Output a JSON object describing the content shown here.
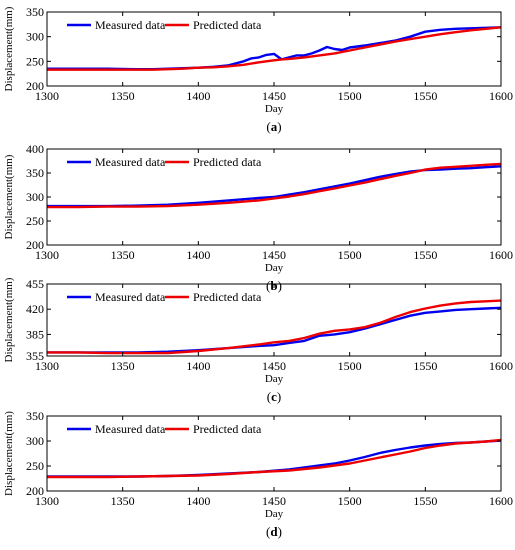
{
  "chart_data": [
    {
      "type": "line",
      "panel_label": "(a)",
      "panel_letter": "a",
      "xlabel": "Day",
      "ylabel": "Displacement(mm)",
      "xlim": [
        1300,
        1600
      ],
      "ylim": [
        200,
        350
      ],
      "xticks": [
        1300,
        1350,
        1400,
        1450,
        1500,
        1550,
        1600
      ],
      "yticks": [
        200,
        250,
        300,
        350
      ],
      "legend_position": "top-left",
      "series": [
        {
          "name": "Measured data",
          "color": "#0000ee",
          "x": [
            1300,
            1320,
            1340,
            1360,
            1370,
            1380,
            1390,
            1400,
            1410,
            1420,
            1430,
            1435,
            1440,
            1445,
            1450,
            1455,
            1460,
            1465,
            1470,
            1475,
            1480,
            1485,
            1490,
            1495,
            1500,
            1510,
            1520,
            1530,
            1540,
            1550,
            1560,
            1570,
            1580,
            1590,
            1600
          ],
          "y": [
            235,
            235,
            235,
            234,
            234,
            235,
            236,
            237,
            239,
            242,
            250,
            256,
            258,
            263,
            265,
            254,
            258,
            262,
            262,
            266,
            272,
            279,
            275,
            273,
            278,
            282,
            287,
            292,
            300,
            310,
            314,
            316,
            317,
            318,
            319
          ]
        },
        {
          "name": "Predicted data",
          "color": "#ee0000",
          "x": [
            1300,
            1320,
            1340,
            1360,
            1370,
            1380,
            1390,
            1400,
            1410,
            1420,
            1430,
            1440,
            1450,
            1455,
            1460,
            1470,
            1480,
            1490,
            1500,
            1510,
            1520,
            1530,
            1540,
            1550,
            1560,
            1570,
            1580,
            1590,
            1600
          ],
          "y": [
            233,
            233,
            233,
            233,
            233,
            234,
            235,
            237,
            238,
            240,
            243,
            248,
            252,
            254,
            255,
            258,
            262,
            266,
            272,
            278,
            284,
            290,
            295,
            300,
            305,
            309,
            313,
            316,
            319
          ]
        }
      ]
    },
    {
      "type": "line",
      "panel_label": "(b)",
      "panel_letter": "b",
      "xlabel": "Day",
      "ylabel": "Displacement(mm)",
      "xlim": [
        1300,
        1600
      ],
      "ylim": [
        200,
        400
      ],
      "xticks": [
        1300,
        1350,
        1400,
        1450,
        1500,
        1550,
        1600
      ],
      "yticks": [
        200,
        250,
        300,
        350,
        400
      ],
      "legend_position": "top-left",
      "series": [
        {
          "name": "Measured data",
          "color": "#0000ee",
          "x": [
            1300,
            1320,
            1340,
            1360,
            1380,
            1400,
            1420,
            1440,
            1450,
            1460,
            1470,
            1480,
            1490,
            1500,
            1510,
            1520,
            1530,
            1540,
            1550,
            1560,
            1570,
            1580,
            1590,
            1600
          ],
          "y": [
            281,
            281,
            281,
            282,
            284,
            288,
            293,
            298,
            300,
            305,
            310,
            316,
            322,
            328,
            335,
            342,
            348,
            353,
            356,
            357,
            359,
            360,
            362,
            364
          ]
        },
        {
          "name": "Predicted data",
          "color": "#ee0000",
          "x": [
            1300,
            1320,
            1340,
            1360,
            1380,
            1400,
            1420,
            1440,
            1450,
            1460,
            1470,
            1480,
            1490,
            1500,
            1510,
            1520,
            1530,
            1540,
            1550,
            1560,
            1570,
            1580,
            1590,
            1600
          ],
          "y": [
            279,
            279,
            280,
            280,
            281,
            284,
            288,
            293,
            297,
            301,
            306,
            312,
            318,
            324,
            330,
            337,
            344,
            350,
            357,
            361,
            363,
            365,
            367,
            369
          ]
        }
      ]
    },
    {
      "type": "line",
      "panel_label": "(c)",
      "panel_letter": "c",
      "xlabel": "Day",
      "ylabel": "Displacement(mm)",
      "xlim": [
        1300,
        1600
      ],
      "ylim": [
        355,
        455
      ],
      "xticks": [
        1300,
        1350,
        1400,
        1450,
        1500,
        1550,
        1600
      ],
      "yticks": [
        355,
        385,
        420,
        455
      ],
      "legend_position": "top-left",
      "series": [
        {
          "name": "Measured data",
          "color": "#0000ee",
          "x": [
            1300,
            1320,
            1340,
            1360,
            1380,
            1400,
            1420,
            1440,
            1450,
            1460,
            1470,
            1480,
            1490,
            1500,
            1510,
            1520,
            1530,
            1540,
            1550,
            1560,
            1570,
            1580,
            1590,
            1600
          ],
          "y": [
            360,
            360,
            360,
            360,
            361,
            363,
            366,
            369,
            370,
            373,
            376,
            383,
            385,
            388,
            393,
            399,
            405,
            411,
            415,
            417,
            419,
            420,
            421,
            422
          ]
        },
        {
          "name": "Predicted data",
          "color": "#ee0000",
          "x": [
            1300,
            1320,
            1340,
            1360,
            1380,
            1400,
            1420,
            1440,
            1450,
            1460,
            1470,
            1480,
            1490,
            1500,
            1510,
            1520,
            1530,
            1540,
            1550,
            1560,
            1570,
            1580,
            1590,
            1600
          ],
          "y": [
            360,
            360,
            359,
            359,
            359,
            362,
            366,
            371,
            374,
            376,
            380,
            386,
            390,
            392,
            395,
            401,
            409,
            416,
            421,
            425,
            428,
            430,
            431,
            432
          ]
        }
      ]
    },
    {
      "type": "line",
      "panel_label": "(d)",
      "panel_letter": "d",
      "xlabel": "Day",
      "ylabel": "Displacement(mm)",
      "xlim": [
        1300,
        1600
      ],
      "ylim": [
        200,
        350
      ],
      "xticks": [
        1300,
        1350,
        1400,
        1450,
        1500,
        1550,
        1600
      ],
      "yticks": [
        200,
        250,
        300,
        350
      ],
      "legend_position": "top-left",
      "series": [
        {
          "name": "Measured data",
          "color": "#0000ee",
          "x": [
            1300,
            1320,
            1340,
            1360,
            1380,
            1400,
            1420,
            1440,
            1460,
            1470,
            1480,
            1490,
            1500,
            1510,
            1520,
            1530,
            1540,
            1550,
            1560,
            1570,
            1580,
            1590,
            1600
          ],
          "y": [
            229,
            229,
            229,
            229,
            230,
            232,
            235,
            238,
            243,
            247,
            251,
            255,
            261,
            268,
            276,
            282,
            287,
            291,
            294,
            296,
            297,
            299,
            301
          ]
        },
        {
          "name": "Predicted data",
          "color": "#ee0000",
          "x": [
            1300,
            1320,
            1340,
            1360,
            1380,
            1400,
            1420,
            1440,
            1460,
            1470,
            1480,
            1490,
            1500,
            1510,
            1520,
            1530,
            1540,
            1550,
            1560,
            1570,
            1580,
            1590,
            1600
          ],
          "y": [
            228,
            228,
            228,
            229,
            230,
            231,
            234,
            238,
            241,
            244,
            247,
            251,
            255,
            261,
            267,
            273,
            279,
            286,
            291,
            295,
            297,
            299,
            302
          ]
        }
      ]
    }
  ]
}
